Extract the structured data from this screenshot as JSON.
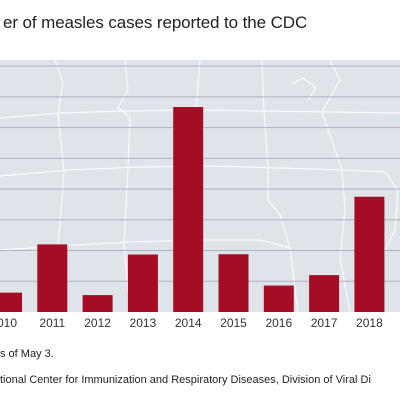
{
  "chart_data": {
    "type": "bar",
    "title": "er of measles cases reported to the CDC",
    "categories": [
      "010",
      "2011",
      "2012",
      "2013",
      "2014",
      "2015",
      "2016",
      "2017",
      "2018"
    ],
    "values": [
      63,
      220,
      55,
      187,
      667,
      188,
      86,
      120,
      375
    ],
    "ylim": [
      0,
      820
    ],
    "grid": true,
    "bar_color": "#a50d25",
    "plot_background": "#dfe3ea",
    "background_map": "outline of the continental United States states"
  },
  "note": "s of May 3.",
  "source": "tional Center for Immunization and Respiratory Diseases, Division of Viral Di"
}
